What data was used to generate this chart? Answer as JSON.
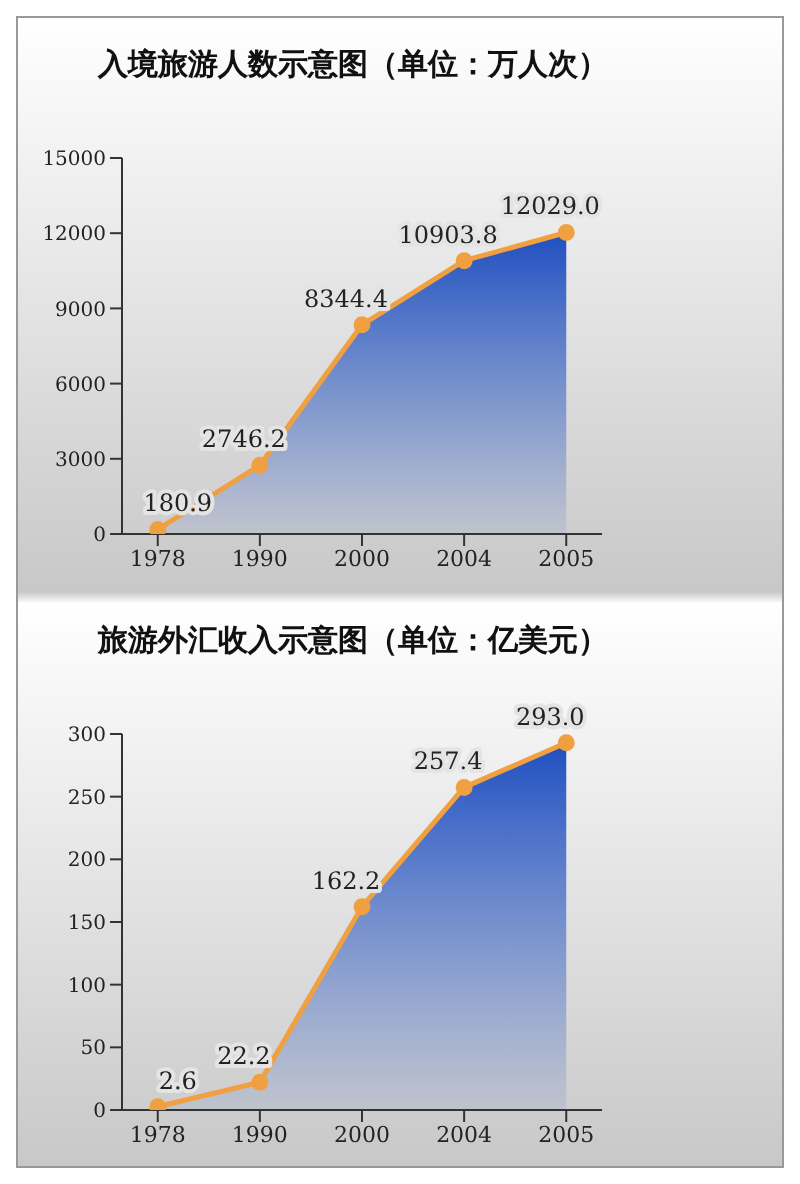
{
  "chart_data": [
    {
      "type": "area",
      "title": "入境旅游人数示意图（单位：万人次）",
      "categories": [
        "1978",
        "1990",
        "2000",
        "2004",
        "2005"
      ],
      "ylim": [
        0,
        15000
      ],
      "yticks": [
        0,
        3000,
        6000,
        9000,
        12000,
        15000
      ],
      "marker": "circle",
      "series": [
        {
          "color": "#f0a040",
          "values": [
            180.9,
            2746.2,
            8344.4,
            10903.8,
            12029.0
          ],
          "value_labels": [
            "180.9",
            "2746.2",
            "8344.4",
            "10903.8",
            "12029.0"
          ]
        }
      ]
    },
    {
      "type": "area",
      "title": "旅游外汇收入示意图（单位：亿美元）",
      "categories": [
        "1978",
        "1990",
        "2000",
        "2004",
        "2005"
      ],
      "ylim": [
        0,
        300
      ],
      "yticks": [
        0,
        50,
        100,
        150,
        200,
        250,
        300
      ],
      "marker": "circle",
      "series": [
        {
          "color": "#f0a040",
          "values": [
            2.6,
            22.2,
            162.2,
            257.4,
            293.0
          ],
          "value_labels": [
            "2.6",
            "22.2",
            "162.2",
            "257.4",
            "293.0"
          ]
        }
      ]
    }
  ]
}
